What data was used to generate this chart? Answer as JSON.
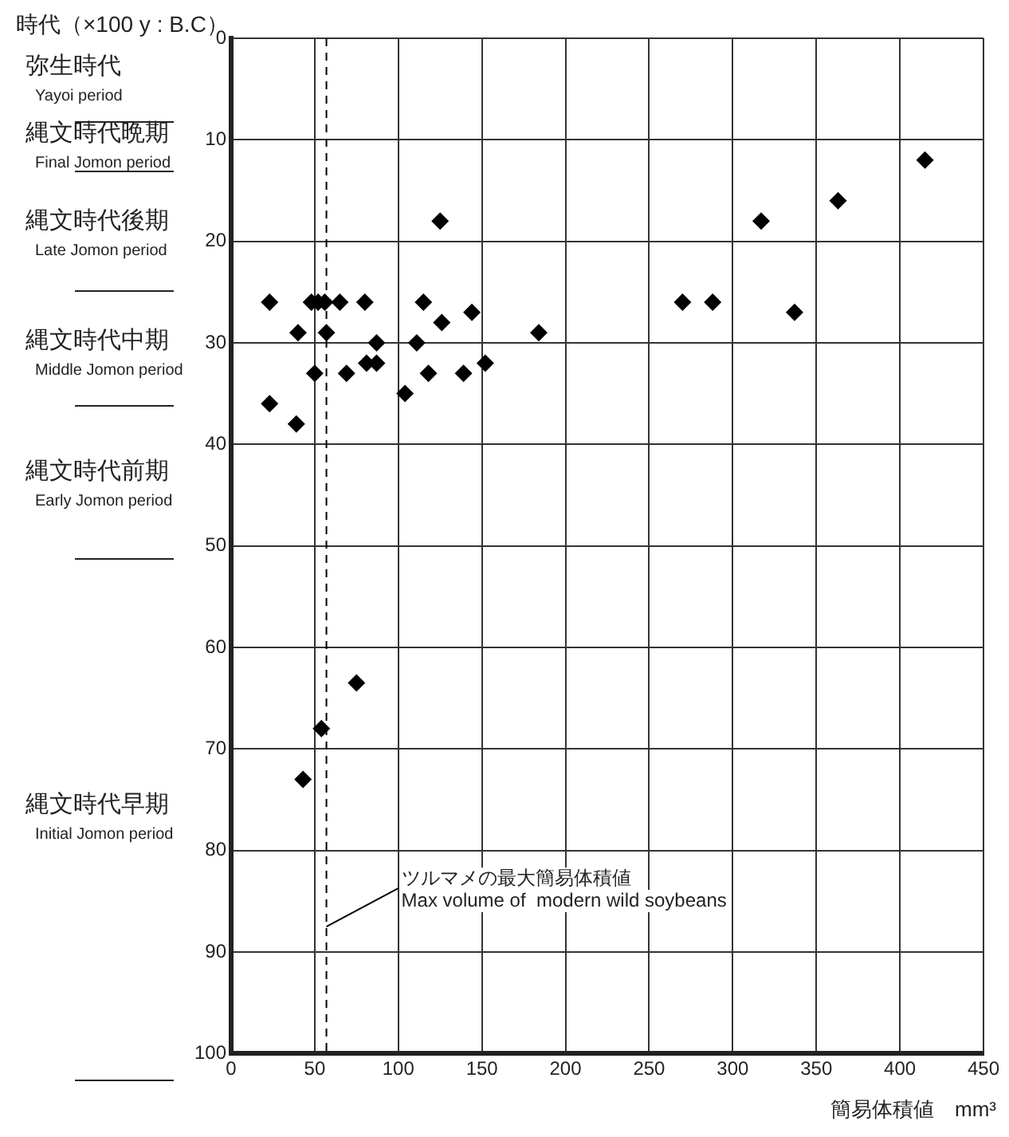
{
  "chart_data": {
    "type": "scatter",
    "ylabel": "時代（×100 y : B.C）",
    "xlabel": "簡易体積値　mm³",
    "x": [
      23,
      48,
      52,
      56,
      65,
      80,
      40,
      57,
      87,
      111,
      81,
      87,
      50,
      69,
      23,
      39,
      104,
      125,
      115,
      126,
      144,
      118,
      139,
      152,
      184,
      415,
      363,
      317,
      270,
      288,
      337,
      75,
      54,
      43
    ],
    "series": [
      {
        "color": "#000000",
        "values": [
          26,
          26,
          26,
          26,
          26,
          26,
          29,
          29,
          30,
          30,
          32,
          32,
          33,
          33,
          36,
          38,
          35,
          18,
          26,
          28,
          27,
          33,
          33,
          32,
          29,
          12,
          16,
          18,
          26,
          26,
          27,
          63.5,
          68,
          73
        ]
      }
    ],
    "xlim": [
      0,
      450
    ],
    "xticks": [
      0,
      50,
      100,
      150,
      200,
      250,
      300,
      350,
      400,
      450
    ],
    "ylim": [
      100,
      0
    ],
    "yticks": [
      0,
      10,
      20,
      30,
      40,
      50,
      60,
      70,
      80,
      90,
      100
    ],
    "grid": true,
    "legend": false,
    "marker": "diamond",
    "ref_lines": [
      {
        "axis": "x",
        "value": 57,
        "label": "ツルマメの最大簡易体積値\nMax volume of  modern wild soybeans",
        "line_style": "dashed",
        "color": "#000000"
      }
    ],
    "annotations": [
      "弥生時代\nYayoi period",
      "縄文時代晩期\nFinal Jomon period",
      "縄文時代後期\nLate Jomon period",
      "縄文時代中期\nMiddle Jomon period",
      "縄文時代前期\nEarly Jomon period",
      "縄文時代早期\nInitial Jomon period"
    ]
  }
}
